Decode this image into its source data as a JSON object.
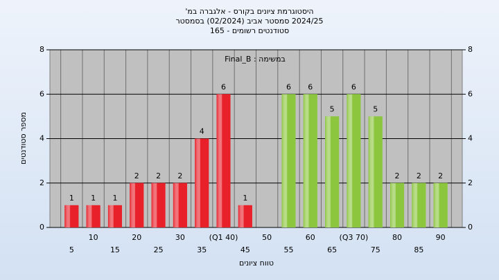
{
  "chart_data": {
    "type": "bar",
    "title": "היסטוגרמת ציונים בקורס - אלגברה במ'",
    "subtitle": "2024/25 סמסטר אביב (02/2024) בסמסטר",
    "subtitle2": "סטודנטים רשומים - 165",
    "annotation": "במשימה : Final_B",
    "y_label": "מספר סטודנטים",
    "x_label": "טווח ציונים",
    "categories": [
      "5",
      "10",
      "15",
      "20",
      "25",
      "30",
      "35",
      "(Q1 40)",
      "45",
      "50",
      "55",
      "60",
      "65",
      "(Q3 70)",
      "75",
      "80",
      "85",
      "90"
    ],
    "values": [
      1,
      1,
      1,
      2,
      2,
      2,
      4,
      6,
      1,
      0,
      6,
      6,
      5,
      6,
      5,
      2,
      2,
      2
    ],
    "colors": [
      "#e8202a",
      "#e8202a",
      "#e8202a",
      "#e8202a",
      "#e8202a",
      "#e8202a",
      "#e8202a",
      "#e8202a",
      "#e8202a",
      "#e8202a",
      "#8cc63f",
      "#8cc63f",
      "#8cc63f",
      "#8cc63f",
      "#8cc63f",
      "#8cc63f",
      "#8cc63f",
      "#8cc63f"
    ],
    "ylim": [
      0,
      8
    ],
    "yticks": [
      0,
      2,
      4,
      6,
      8
    ],
    "y2lim": [
      0,
      8
    ],
    "y2ticks": [
      0,
      2,
      4,
      6,
      8
    ],
    "grid": true
  }
}
